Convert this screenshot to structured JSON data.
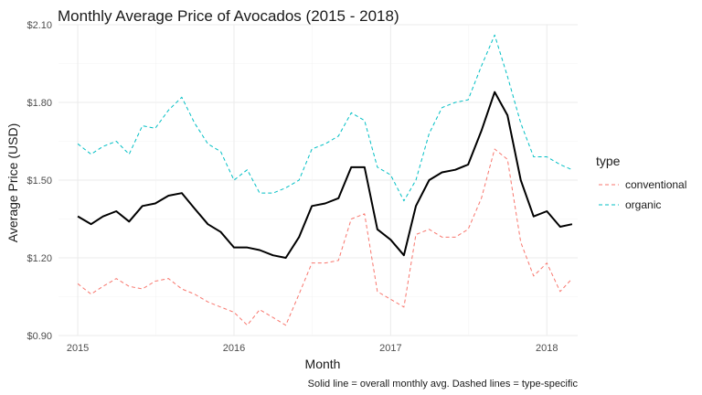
{
  "chart_data": {
    "type": "line",
    "title": "Monthly Average Price of Avocados (2015 - 2018)",
    "xlabel": "Month",
    "ylabel": "Average Price (USD)",
    "caption": "Solid line = overall monthly avg. Dashed lines = type-specific",
    "x_ticks": [
      "2015",
      "2016",
      "2017",
      "2018"
    ],
    "y_ticks": [
      "$0.90",
      "$1.20",
      "$1.50",
      "$1.80",
      "$2.10"
    ],
    "y_tick_values": [
      0.9,
      1.2,
      1.5,
      1.8,
      2.1
    ],
    "ylim": [
      0.9,
      2.1
    ],
    "xlim": [
      "2014-11-17",
      "2018-03-14"
    ],
    "grid": true,
    "legend": {
      "title": "type",
      "position": "right",
      "items": [
        "conventional",
        "organic"
      ]
    },
    "months": [
      "2015-01",
      "2015-02",
      "2015-03",
      "2015-04",
      "2015-05",
      "2015-06",
      "2015-07",
      "2015-08",
      "2015-09",
      "2015-10",
      "2015-11",
      "2015-12",
      "2016-01",
      "2016-02",
      "2016-03",
      "2016-04",
      "2016-05",
      "2016-06",
      "2016-07",
      "2016-08",
      "2016-09",
      "2016-10",
      "2016-11",
      "2016-12",
      "2017-01",
      "2017-02",
      "2017-03",
      "2017-04",
      "2017-05",
      "2017-06",
      "2017-07",
      "2017-08",
      "2017-09",
      "2017-10",
      "2017-11",
      "2017-12",
      "2018-01",
      "2018-02",
      "2018-03"
    ],
    "series": [
      {
        "name": "conventional",
        "style": "dashed",
        "color": "#F8766D",
        "values": [
          1.1,
          1.06,
          1.09,
          1.12,
          1.09,
          1.08,
          1.11,
          1.12,
          1.08,
          1.06,
          1.03,
          1.01,
          0.99,
          0.94,
          1.0,
          0.97,
          0.94,
          1.06,
          1.18,
          1.18,
          1.19,
          1.35,
          1.37,
          1.07,
          1.04,
          1.01,
          1.29,
          1.31,
          1.28,
          1.28,
          1.31,
          1.43,
          1.62,
          1.58,
          1.26,
          1.13,
          1.18,
          1.07,
          1.12
        ]
      },
      {
        "name": "organic",
        "style": "dashed",
        "color": "#00BFC4",
        "values": [
          1.64,
          1.6,
          1.63,
          1.65,
          1.6,
          1.71,
          1.7,
          1.77,
          1.82,
          1.72,
          1.64,
          1.61,
          1.5,
          1.54,
          1.45,
          1.45,
          1.47,
          1.5,
          1.62,
          1.64,
          1.67,
          1.76,
          1.73,
          1.55,
          1.52,
          1.42,
          1.5,
          1.68,
          1.78,
          1.8,
          1.81,
          1.94,
          2.06,
          1.9,
          1.72,
          1.59,
          1.59,
          1.56,
          1.54
        ]
      },
      {
        "style": "solid",
        "color": "#000000",
        "values": [
          1.36,
          1.33,
          1.36,
          1.38,
          1.34,
          1.4,
          1.41,
          1.44,
          1.45,
          1.39,
          1.33,
          1.3,
          1.24,
          1.24,
          1.23,
          1.21,
          1.2,
          1.28,
          1.4,
          1.41,
          1.43,
          1.55,
          1.55,
          1.31,
          1.27,
          1.21,
          1.4,
          1.5,
          1.53,
          1.54,
          1.56,
          1.69,
          1.84,
          1.75,
          1.5,
          1.36,
          1.38,
          1.32,
          1.33
        ]
      }
    ]
  }
}
